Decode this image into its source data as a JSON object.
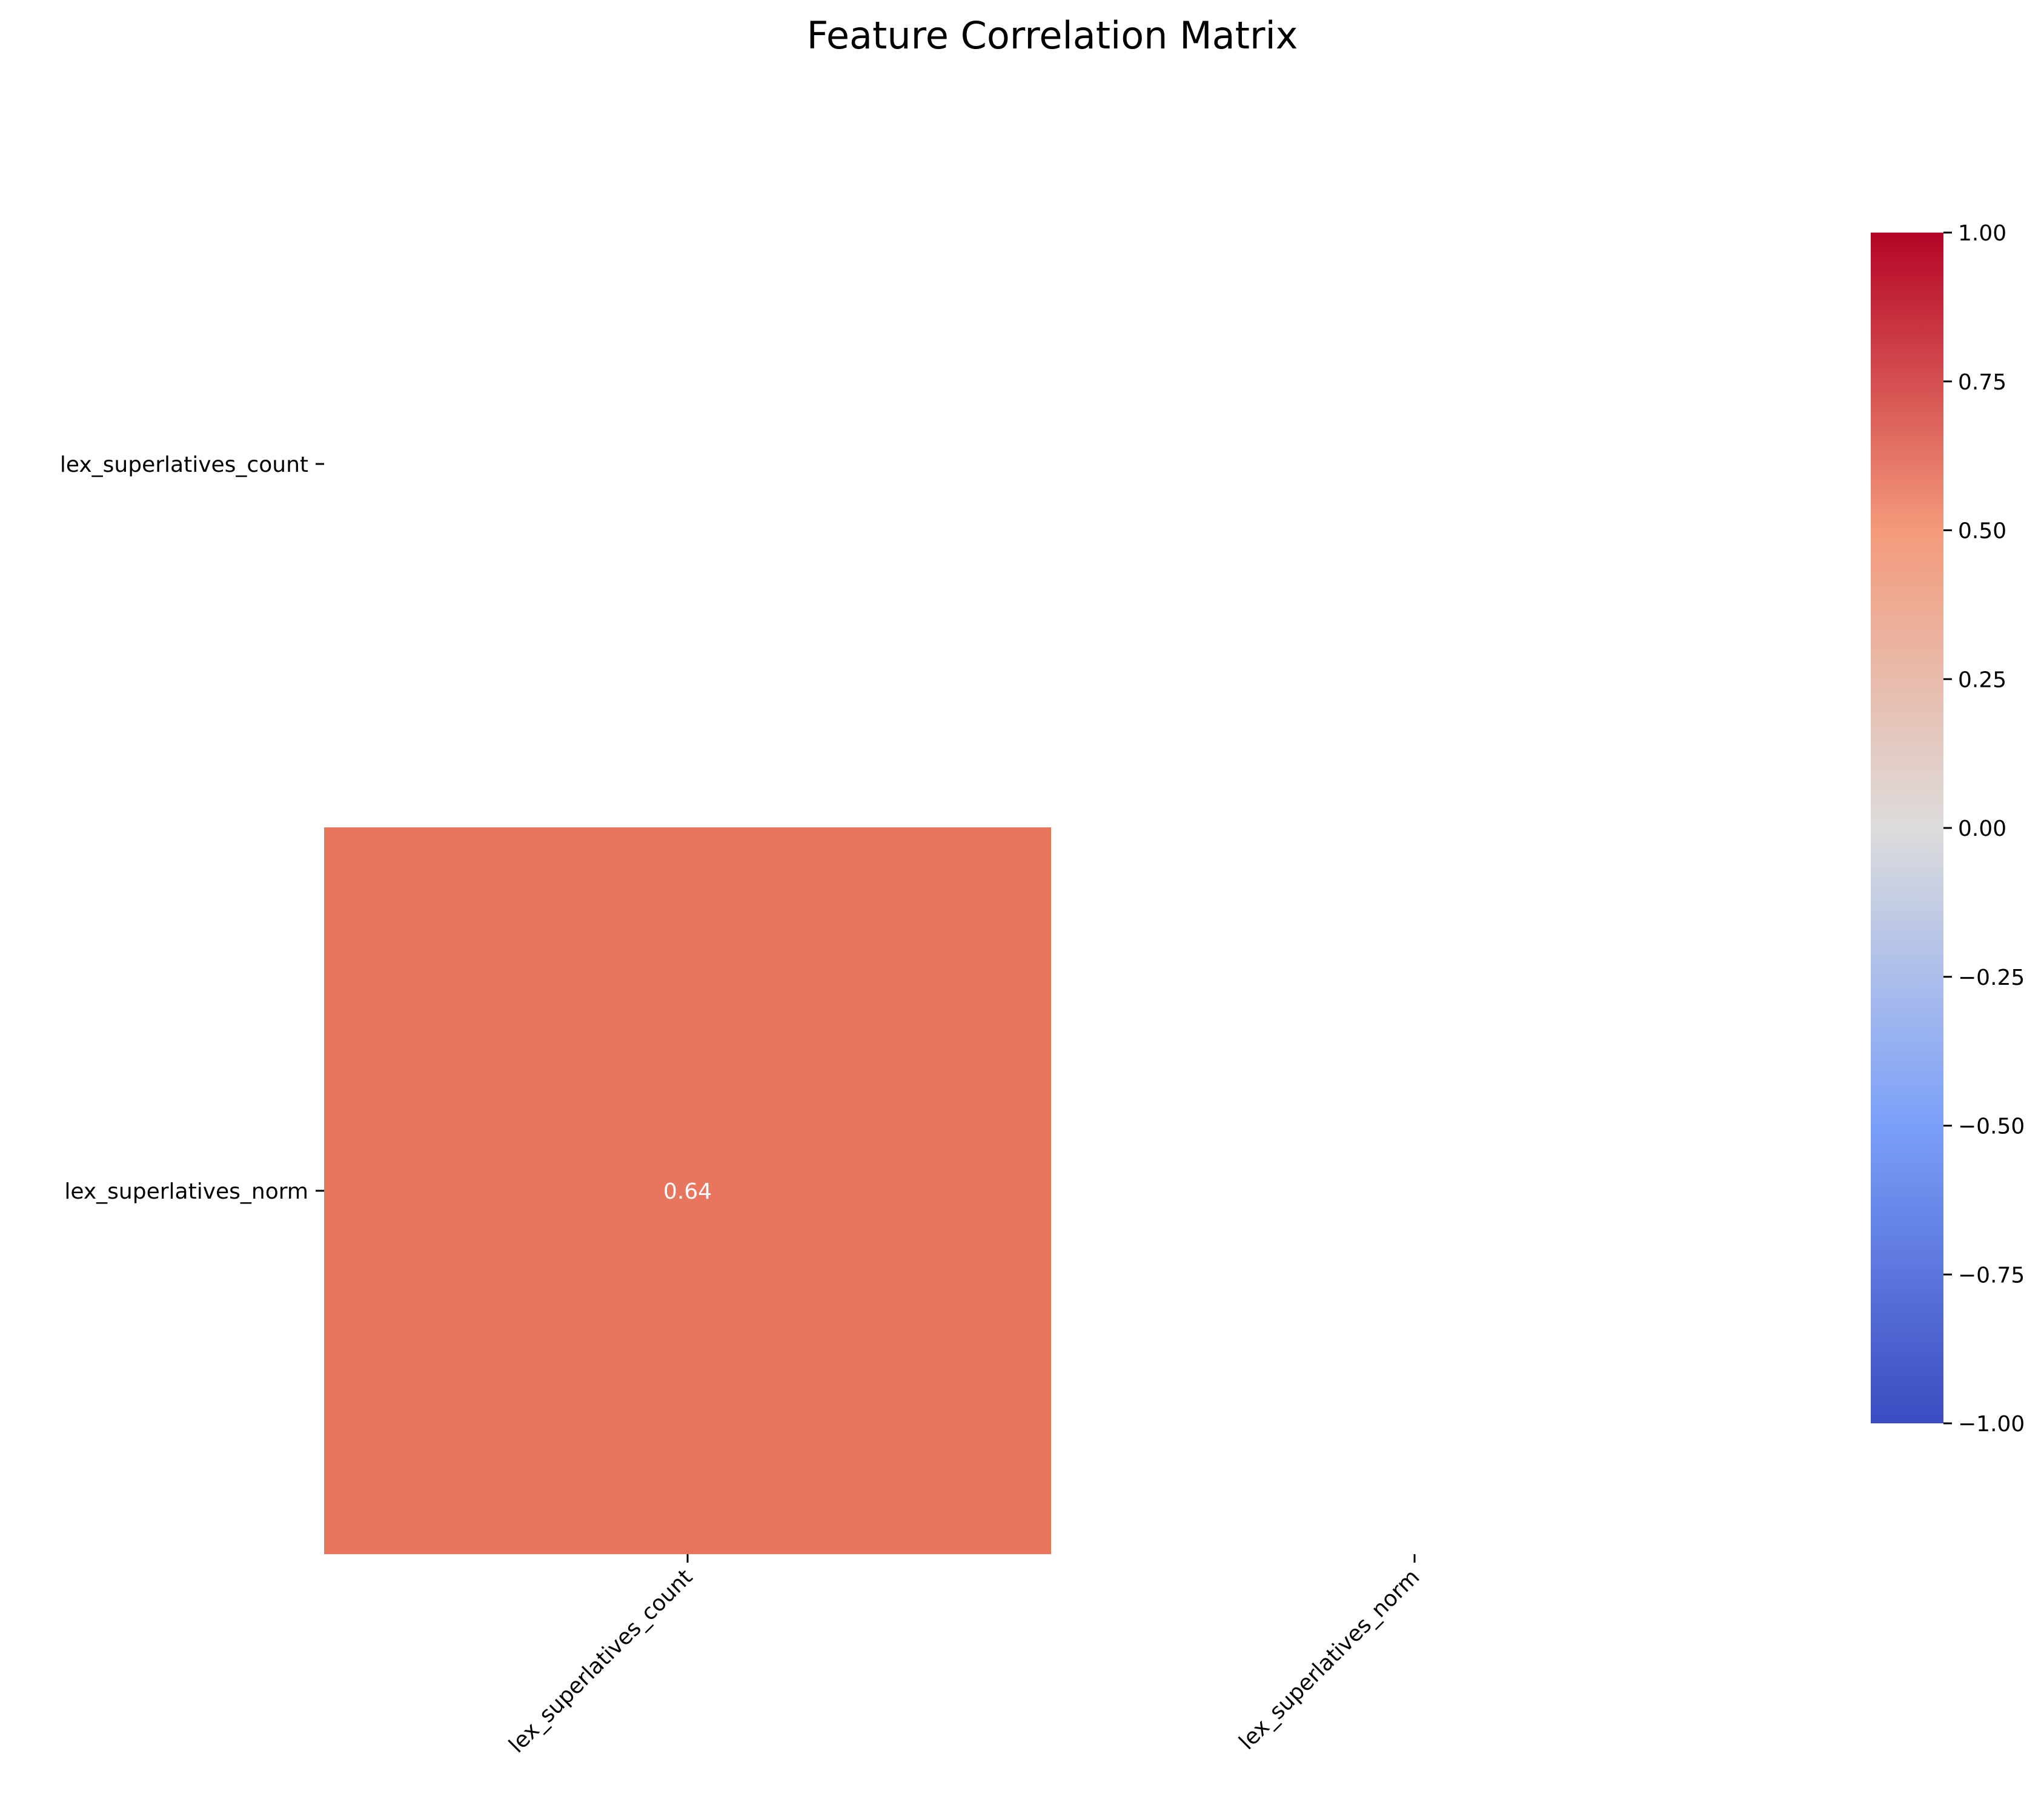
{
  "chart_data": {
    "type": "heatmap",
    "title": "Feature Correlation Matrix",
    "xlabel": "",
    "ylabel": "",
    "row_labels": [
      "lex_superlatives_count",
      "lex_superlatives_norm"
    ],
    "col_labels": [
      "lex_superlatives_count",
      "lex_superlatives_norm"
    ],
    "matrix": [
      [
        null,
        null
      ],
      [
        0.64,
        null
      ]
    ],
    "mask": "upper-triangle-including-diagonal",
    "annotations": [
      {
        "row": 1,
        "col": 0,
        "text": "0.64"
      }
    ],
    "colormap": "coolwarm",
    "colorbar": {
      "range": [
        -1.0,
        1.0
      ],
      "ticks": [
        1.0,
        0.75,
        0.5,
        0.25,
        0.0,
        -0.25,
        -0.5,
        -0.75,
        -1.0
      ],
      "tick_labels": [
        "1.00",
        "0.75",
        "0.50",
        "0.25",
        "0.00",
        "−0.25",
        "−0.50",
        "−0.75",
        "−1.00"
      ],
      "stops": [
        {
          "value": -1.0,
          "color": "#3b4cc0"
        },
        {
          "value": -0.5,
          "color": "#7b9ff9"
        },
        {
          "value": 0.0,
          "color": "#dddcdc"
        },
        {
          "value": 0.5,
          "color": "#f49a7b"
        },
        {
          "value": 1.0,
          "color": "#b40426"
        }
      ]
    },
    "cell_color": "#e8765f",
    "annotation_color": "#ffffff"
  }
}
